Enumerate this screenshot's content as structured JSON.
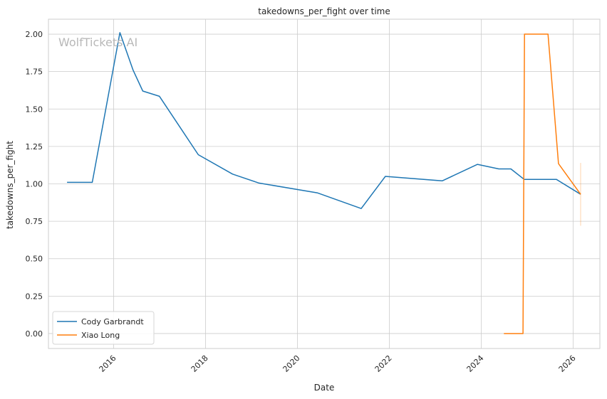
{
  "watermark": "WolfTickets AI",
  "chart_data": {
    "type": "line",
    "title": "takedowns_per_fight over time",
    "xlabel": "Date",
    "ylabel": "takedowns_per_fight",
    "xlim": [
      "2014-08-01",
      "2026-08-01"
    ],
    "ylim": [
      -0.1,
      2.1
    ],
    "x_ticks": [
      {
        "date": "2016-01-01",
        "label": "2016"
      },
      {
        "date": "2018-01-01",
        "label": "2018"
      },
      {
        "date": "2020-01-01",
        "label": "2020"
      },
      {
        "date": "2022-01-01",
        "label": "2022"
      },
      {
        "date": "2024-01-01",
        "label": "2024"
      },
      {
        "date": "2026-01-01",
        "label": "2026"
      }
    ],
    "y_ticks": [
      0.0,
      0.25,
      0.5,
      0.75,
      1.0,
      1.25,
      1.5,
      1.75,
      2.0
    ],
    "y_tick_labels": [
      "0.00",
      "0.25",
      "0.50",
      "0.75",
      "1.00",
      "1.25",
      "1.50",
      "1.75",
      "2.00"
    ],
    "grid": true,
    "legend_position": "lower-left",
    "series": [
      {
        "name": "Cody Garbrandt",
        "color": "#1f77b4",
        "points": [
          {
            "x": "2014-12-27",
            "y": 1.01
          },
          {
            "x": "2015-07-15",
            "y": 1.01
          },
          {
            "x": "2016-02-20",
            "y": 2.01
          },
          {
            "x": "2016-06-04",
            "y": 1.76
          },
          {
            "x": "2016-08-20",
            "y": 1.62
          },
          {
            "x": "2016-12-30",
            "y": 1.585
          },
          {
            "x": "2017-11-04",
            "y": 1.195
          },
          {
            "x": "2018-08-04",
            "y": 1.065
          },
          {
            "x": "2019-03-02",
            "y": 1.005
          },
          {
            "x": "2020-06-06",
            "y": 0.94
          },
          {
            "x": "2021-05-22",
            "y": 0.835
          },
          {
            "x": "2021-11-30",
            "y": 1.05
          },
          {
            "x": "2023-02-25",
            "y": 1.02
          },
          {
            "x": "2023-12-02",
            "y": 1.13
          },
          {
            "x": "2024-05-20",
            "y": 1.1
          },
          {
            "x": "2024-08-24",
            "y": 1.1
          },
          {
            "x": "2024-12-07",
            "y": 1.03
          },
          {
            "x": "2025-04-15",
            "y": 1.03
          },
          {
            "x": "2025-08-20",
            "y": 1.03
          },
          {
            "x": "2026-03-01",
            "y": 0.93
          }
        ]
      },
      {
        "name": "Xiao Long",
        "color": "#ff7f0e",
        "points": [
          {
            "x": "2024-06-29",
            "y": 0.0
          },
          {
            "x": "2024-11-28",
            "y": 0.0
          },
          {
            "x": "2024-12-10",
            "y": 2.0
          },
          {
            "x": "2025-04-26",
            "y": 2.0
          },
          {
            "x": "2025-06-15",
            "y": 2.0
          },
          {
            "x": "2025-09-06",
            "y": 1.135
          },
          {
            "x": "2026-03-01",
            "y": 0.93
          }
        ],
        "error_bar": {
          "x": "2026-03-01",
          "low": 0.72,
          "high": 1.14
        }
      }
    ]
  }
}
